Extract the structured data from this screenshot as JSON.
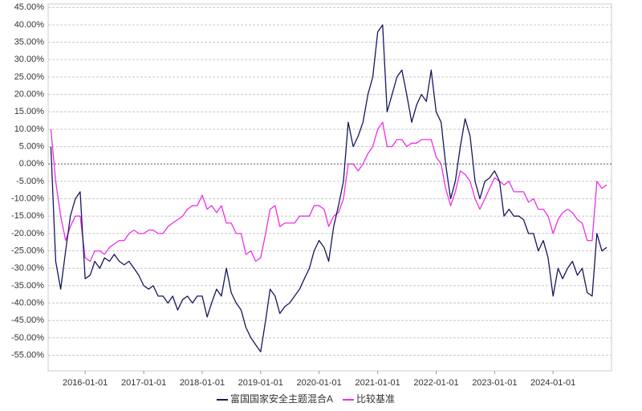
{
  "chart_data": {
    "type": "line",
    "x": [
      "2015-06-01",
      "2015-07-01",
      "2015-08-01",
      "2015-09-01",
      "2015-10-01",
      "2015-11-01",
      "2015-12-01",
      "2016-01-01",
      "2016-02-01",
      "2016-03-01",
      "2016-04-01",
      "2016-05-01",
      "2016-06-01",
      "2016-07-01",
      "2016-08-01",
      "2016-09-01",
      "2016-10-01",
      "2016-11-01",
      "2016-12-01",
      "2017-01-01",
      "2017-02-01",
      "2017-03-01",
      "2017-04-01",
      "2017-05-01",
      "2017-06-01",
      "2017-07-01",
      "2017-08-01",
      "2017-09-01",
      "2017-10-01",
      "2017-11-01",
      "2017-12-01",
      "2018-01-01",
      "2018-02-01",
      "2018-03-01",
      "2018-04-01",
      "2018-05-01",
      "2018-06-01",
      "2018-07-01",
      "2018-08-01",
      "2018-09-01",
      "2018-10-01",
      "2018-11-01",
      "2018-12-01",
      "2019-01-01",
      "2019-02-01",
      "2019-03-01",
      "2019-04-01",
      "2019-05-01",
      "2019-06-01",
      "2019-07-01",
      "2019-08-01",
      "2019-09-01",
      "2019-10-01",
      "2019-11-01",
      "2019-12-01",
      "2020-01-01",
      "2020-02-01",
      "2020-03-01",
      "2020-04-01",
      "2020-05-01",
      "2020-06-01",
      "2020-07-01",
      "2020-08-01",
      "2020-09-01",
      "2020-10-01",
      "2020-11-01",
      "2020-12-01",
      "2021-01-01",
      "2021-02-01",
      "2021-03-01",
      "2021-04-01",
      "2021-05-01",
      "2021-06-01",
      "2021-07-01",
      "2021-08-01",
      "2021-09-01",
      "2021-10-01",
      "2021-11-01",
      "2021-12-01",
      "2022-01-01",
      "2022-02-01",
      "2022-03-01",
      "2022-04-01",
      "2022-05-01",
      "2022-06-01",
      "2022-07-01",
      "2022-08-01",
      "2022-09-01",
      "2022-10-01",
      "2022-11-01",
      "2022-12-01",
      "2023-01-01",
      "2023-02-01",
      "2023-03-01",
      "2023-04-01",
      "2023-05-01",
      "2023-06-01",
      "2023-07-01",
      "2023-08-01",
      "2023-09-01",
      "2023-10-01",
      "2023-11-01",
      "2023-12-01",
      "2024-01-01",
      "2024-02-01",
      "2024-03-01",
      "2024-04-01",
      "2024-05-01",
      "2024-06-01",
      "2024-07-01",
      "2024-08-01",
      "2024-09-01",
      "2024-10-01",
      "2024-11-01",
      "2024-12-01"
    ],
    "series": [
      {
        "name": "富国国家安全主题混合A",
        "color": "#16165e",
        "values": [
          5,
          -28,
          -36,
          -25,
          -15,
          -10,
          -8,
          -33,
          -32,
          -28,
          -30,
          -27,
          -28,
          -26,
          -28,
          -29,
          -28,
          -30,
          -32,
          -35,
          -36,
          -35,
          -38,
          -38,
          -40,
          -38,
          -42,
          -39,
          -38,
          -40,
          -38,
          -38,
          -44,
          -40,
          -36,
          -38,
          -30,
          -37,
          -40,
          -42,
          -47,
          -50,
          -52,
          -54,
          -45,
          -36,
          -38,
          -43,
          -41,
          -40,
          -38,
          -36,
          -33,
          -30,
          -25,
          -22,
          -24,
          -28,
          -18,
          -12,
          -5,
          12,
          5,
          8,
          12,
          20,
          25,
          38,
          40,
          15,
          20,
          25,
          27,
          20,
          12,
          17,
          20,
          18,
          27,
          15,
          12,
          0,
          -10,
          -5,
          5,
          13,
          8,
          -5,
          -10,
          -5,
          -4,
          -2,
          -5,
          -15,
          -13,
          -15,
          -15,
          -16,
          -20,
          -20,
          -25,
          -22,
          -27,
          -38,
          -30,
          -33,
          -30,
          -28,
          -32,
          -30,
          -37,
          -38,
          -20,
          -25,
          -24
        ]
      },
      {
        "name": "比较基准",
        "color": "#ee2ee8",
        "values": [
          10,
          -5,
          -15,
          -22,
          -18,
          -15,
          -15,
          -27,
          -28,
          -25,
          -25,
          -26,
          -24,
          -23,
          -22,
          -22,
          -20,
          -19,
          -20,
          -20,
          -19,
          -19,
          -20,
          -20,
          -18,
          -17,
          -16,
          -15,
          -13,
          -12,
          -12,
          -9,
          -13,
          -12,
          -14,
          -12,
          -17,
          -17,
          -20,
          -20,
          -26,
          -25,
          -28,
          -27,
          -20,
          -13,
          -12,
          -18,
          -17,
          -17,
          -17,
          -15,
          -15,
          -15,
          -12,
          -12,
          -13,
          -18,
          -15,
          -14,
          -10,
          0,
          0,
          -2,
          0,
          3,
          5,
          10,
          12,
          5,
          5,
          7,
          7,
          5,
          6,
          6,
          7,
          7,
          7,
          2,
          0,
          -7,
          -12,
          -8,
          -2,
          -3,
          -5,
          -10,
          -13,
          -10,
          -7,
          -4,
          -5,
          -6,
          -5,
          -8,
          -8,
          -8,
          -11,
          -10,
          -13,
          -13,
          -15,
          -20,
          -16,
          -14,
          -13,
          -14,
          -16,
          -17,
          -22,
          -22,
          -5,
          -7,
          -6
        ]
      }
    ],
    "xlim": [
      "2015-05-15",
      "2024-12-31"
    ],
    "xticks": [
      "2016-01-01",
      "2017-01-01",
      "2018-01-01",
      "2019-01-01",
      "2020-01-01",
      "2021-01-01",
      "2022-01-01",
      "2023-01-01",
      "2024-01-01"
    ],
    "ylim": [
      -59.5,
      46
    ],
    "yticks": [
      {
        "value": 45,
        "label": "45.00%"
      },
      {
        "value": 40,
        "label": "40.00%"
      },
      {
        "value": 35,
        "label": "35.00%"
      },
      {
        "value": 30,
        "label": "30.00%"
      },
      {
        "value": 25,
        "label": "25.00%"
      },
      {
        "value": 20,
        "label": "20.00%"
      },
      {
        "value": 15,
        "label": "15.00%"
      },
      {
        "value": 10,
        "label": "10.00%"
      },
      {
        "value": 5,
        "label": "5.00%"
      },
      {
        "value": 0,
        "label": "0.00%"
      },
      {
        "value": -5,
        "label": "-5.00%"
      },
      {
        "value": -10,
        "label": "-10.00%"
      },
      {
        "value": -15,
        "label": "-15.00%"
      },
      {
        "value": -20,
        "label": "-20.00%"
      },
      {
        "value": -25,
        "label": "-25.00%"
      },
      {
        "value": -30,
        "label": "-30.00%"
      },
      {
        "value": -35,
        "label": "-35.00%"
      },
      {
        "value": -40,
        "label": "-40.00%"
      },
      {
        "value": -45,
        "label": "-45.00%"
      },
      {
        "value": -50,
        "label": "-50.00%"
      },
      {
        "value": -55,
        "label": "-55.00%"
      }
    ],
    "grid": true
  }
}
